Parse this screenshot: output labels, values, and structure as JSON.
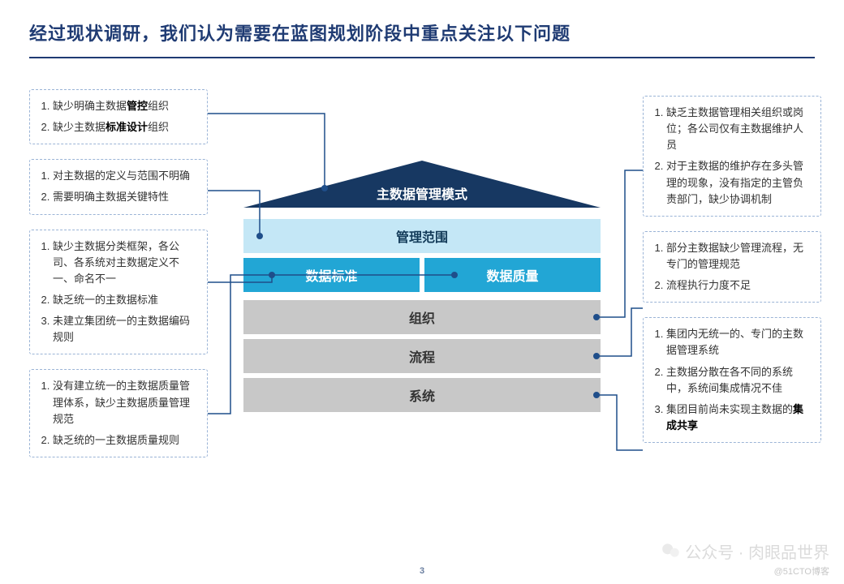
{
  "title": "经过现状调研，我们认为需要在蓝图规划阶段中重点关注以下问题",
  "pageNumber": "3",
  "watermark": {
    "line1": "公众号 · 肉眼品世界",
    "line2": "@51CTO博客"
  },
  "colors": {
    "titleColor": "#1f3b73",
    "ruleColor": "#1f3b73",
    "boxBorder": "#9bb4d6",
    "connector": "#1f4e8a",
    "roof": "#173862",
    "scopeBg": "#c4e7f6",
    "stdBg": "#22a6d5",
    "grayBg": "#c8c8c8"
  },
  "center": {
    "roof": "主数据管理模式",
    "scope": "管理范围",
    "std": "数据标准",
    "qual": "数据质量",
    "org": "组织",
    "proc": "流程",
    "sys": "系统"
  },
  "left": {
    "b1": {
      "i1": "缺少明确主数据<b>管控</b>组织",
      "i2": "缺少主数据<b>标准设计</b>组织"
    },
    "b2": {
      "i1": "对主数据的定义与范围不明确",
      "i2": "需要明确主数据关键特性"
    },
    "b3": {
      "i1": "缺少主数据分类框架，各公司、各系统对主数据定义不一、命名不一",
      "i2": "缺乏统一的主数据标准",
      "i3": "未建立集团统一的主数据编码规则"
    },
    "b4": {
      "i1": "没有建立统一的主数据质量管理体系，缺少主数据质量管理规范",
      "i2": "缺乏统的一主数据质量规则"
    }
  },
  "right": {
    "b1": {
      "i1": "缺乏主数据管理相关组织或岗位；各公司仅有主数据维护人员",
      "i2": "对于主数据的维护存在多头管理的现象，没有指定的主管负责部门，缺少协调机制"
    },
    "b2": {
      "i1": "部分主数据缺少管理流程，无专门的管理规范",
      "i2": "流程执行力度不足"
    },
    "b3": {
      "i1": "集团内无统一的、专门的主数据管理系统",
      "i2": "主数据分散在各不同的系统中，系统间集成情况不佳",
      "i3": "集团目前尚未实现主数据的<b>集成共享</b>"
    }
  }
}
